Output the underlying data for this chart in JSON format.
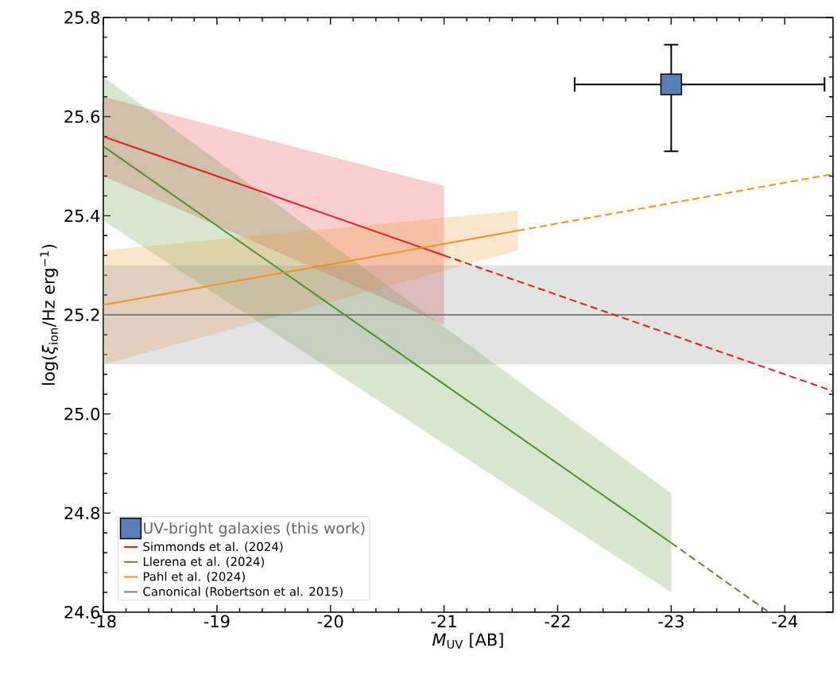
{
  "chart_data": {
    "type": "line",
    "xlabel": "*M*$_{UV}$ [AB]",
    "ylabel": "log(*ξ*$_{ion}$/Hz erg$^{−1}$)",
    "xlim": [
      -18,
      -24.425
    ],
    "ylim": [
      24.6,
      25.8
    ],
    "xticks": [
      -18,
      -19,
      -20,
      -21,
      -22,
      -23,
      -24
    ],
    "yticks": [
      24.6,
      24.8,
      {
        "value": 25.0,
        "label": "25.0"
      },
      25.2,
      25.4,
      25.6,
      25.8
    ],
    "legend": "bottom left",
    "grid": false,
    "series": [
      {
        "type": "scatter",
        "name": "UV-bright galaxies (this work)",
        "color": "#5b7fb5",
        "marker": "square",
        "x": [
          -23
        ],
        "values": [
          25.665
        ],
        "errors": [
          [
            25.53,
            25.745
          ]
        ],
        "xerrors": [
          [
            -22.15,
            -24.35
          ]
        ]
      },
      {
        "name": "Simmonds et al. (2024)",
        "color": "#e02020",
        "line_style": "solid",
        "x": [
          -18,
          -21
        ],
        "values": [
          25.56,
          25.32
        ],
        "lower": [
          25.48,
          25.18
        ],
        "upper": [
          25.64,
          25.46
        ]
      },
      {
        "name": "Llerena et al. (2024)",
        "color": "#4d8f2a",
        "line_style": "solid",
        "x": [
          -18,
          -23
        ],
        "values": [
          25.54,
          24.74
        ],
        "lower": [
          25.39,
          24.64
        ],
        "upper": [
          25.68,
          24.84
        ]
      },
      {
        "name": "Pahl et al. (2024)",
        "color": "#f0921e",
        "line_style": "solid",
        "x": [
          -18,
          -21.65
        ],
        "values": [
          25.22,
          25.37
        ],
        "lower": [
          25.1,
          25.33
        ],
        "upper": [
          25.33,
          25.41
        ]
      },
      {
        "name": "Canonical (Robertson et al. 2015)",
        "color": "#808080",
        "line_style": "solid",
        "x": [
          -18,
          -24.425
        ],
        "values": [
          25.2,
          25.2
        ],
        "lower": [
          25.1,
          25.1
        ],
        "upper": [
          25.3,
          25.3
        ]
      },
      {
        "color": "#e02020",
        "line_style": "dashed",
        "x": [
          -21,
          -24.425
        ],
        "values": [
          25.32,
          25.046
        ]
      },
      {
        "color": "#4d8f2a",
        "line_style": "dashed",
        "x": [
          -23,
          -23.86
        ],
        "values": [
          24.74,
          24.6
        ]
      },
      {
        "color": "#f0921e",
        "line_style": "dashed",
        "x": [
          -21.65,
          -24.425
        ],
        "values": [
          25.37,
          25.484
        ]
      }
    ]
  }
}
